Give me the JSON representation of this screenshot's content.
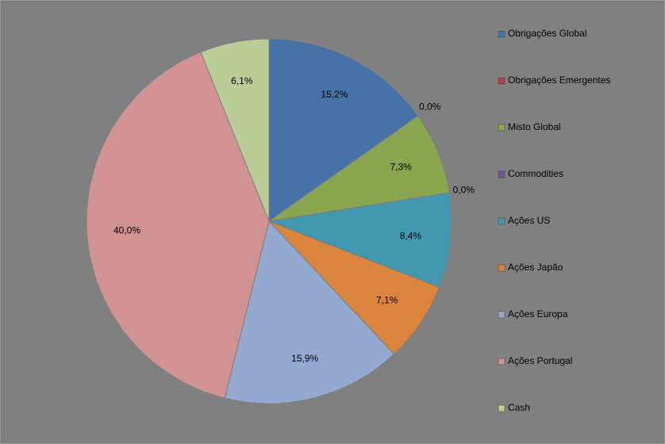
{
  "chart_data": {
    "type": "pie",
    "categories": [
      "Obrigações Global",
      "Obrigações Emergentes",
      "Misto Global",
      "Commodities",
      "Ações US",
      "Ações Japão",
      "Ações Europa",
      "Ações Portugal",
      "Cash"
    ],
    "values": [
      15.2,
      0.0,
      7.3,
      0.0,
      8.4,
      7.1,
      15.9,
      40.0,
      6.1
    ],
    "value_labels": [
      "15,2%",
      "0,0%",
      "7,3%",
      "0,0%",
      "8,4%",
      "7,1%",
      "15,9%",
      "40,0%",
      "6,1%"
    ],
    "colors": [
      "#4572a7",
      "#aa4643",
      "#89a54e",
      "#71588f",
      "#4198af",
      "#db843d",
      "#93a9cf",
      "#d19392",
      "#b9cd96"
    ],
    "legend": "right"
  }
}
